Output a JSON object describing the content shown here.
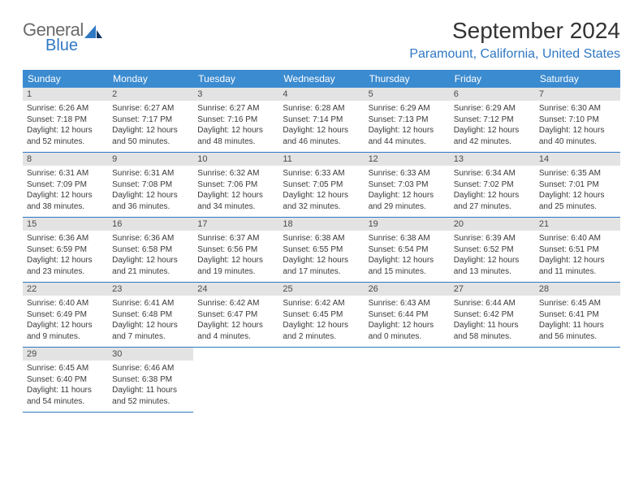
{
  "logo": {
    "word1": "General",
    "word2": "Blue"
  },
  "title": "September 2024",
  "location": "Paramount, California, United States",
  "day_names": [
    "Sunday",
    "Monday",
    "Tuesday",
    "Wednesday",
    "Thursday",
    "Friday",
    "Saturday"
  ],
  "colors": {
    "header_bg": "#3b8bd0",
    "accent": "#2f78c4",
    "daynum_bg": "#e3e3e3",
    "text": "#3a3a3a",
    "logo_gray": "#6b6b6b"
  },
  "days": [
    {
      "n": "1",
      "sr": "6:26 AM",
      "ss": "7:18 PM",
      "dl": "12 hours and 52 minutes."
    },
    {
      "n": "2",
      "sr": "6:27 AM",
      "ss": "7:17 PM",
      "dl": "12 hours and 50 minutes."
    },
    {
      "n": "3",
      "sr": "6:27 AM",
      "ss": "7:16 PM",
      "dl": "12 hours and 48 minutes."
    },
    {
      "n": "4",
      "sr": "6:28 AM",
      "ss": "7:14 PM",
      "dl": "12 hours and 46 minutes."
    },
    {
      "n": "5",
      "sr": "6:29 AM",
      "ss": "7:13 PM",
      "dl": "12 hours and 44 minutes."
    },
    {
      "n": "6",
      "sr": "6:29 AM",
      "ss": "7:12 PM",
      "dl": "12 hours and 42 minutes."
    },
    {
      "n": "7",
      "sr": "6:30 AM",
      "ss": "7:10 PM",
      "dl": "12 hours and 40 minutes."
    },
    {
      "n": "8",
      "sr": "6:31 AM",
      "ss": "7:09 PM",
      "dl": "12 hours and 38 minutes."
    },
    {
      "n": "9",
      "sr": "6:31 AM",
      "ss": "7:08 PM",
      "dl": "12 hours and 36 minutes."
    },
    {
      "n": "10",
      "sr": "6:32 AM",
      "ss": "7:06 PM",
      "dl": "12 hours and 34 minutes."
    },
    {
      "n": "11",
      "sr": "6:33 AM",
      "ss": "7:05 PM",
      "dl": "12 hours and 32 minutes."
    },
    {
      "n": "12",
      "sr": "6:33 AM",
      "ss": "7:03 PM",
      "dl": "12 hours and 29 minutes."
    },
    {
      "n": "13",
      "sr": "6:34 AM",
      "ss": "7:02 PM",
      "dl": "12 hours and 27 minutes."
    },
    {
      "n": "14",
      "sr": "6:35 AM",
      "ss": "7:01 PM",
      "dl": "12 hours and 25 minutes."
    },
    {
      "n": "15",
      "sr": "6:36 AM",
      "ss": "6:59 PM",
      "dl": "12 hours and 23 minutes."
    },
    {
      "n": "16",
      "sr": "6:36 AM",
      "ss": "6:58 PM",
      "dl": "12 hours and 21 minutes."
    },
    {
      "n": "17",
      "sr": "6:37 AM",
      "ss": "6:56 PM",
      "dl": "12 hours and 19 minutes."
    },
    {
      "n": "18",
      "sr": "6:38 AM",
      "ss": "6:55 PM",
      "dl": "12 hours and 17 minutes."
    },
    {
      "n": "19",
      "sr": "6:38 AM",
      "ss": "6:54 PM",
      "dl": "12 hours and 15 minutes."
    },
    {
      "n": "20",
      "sr": "6:39 AM",
      "ss": "6:52 PM",
      "dl": "12 hours and 13 minutes."
    },
    {
      "n": "21",
      "sr": "6:40 AM",
      "ss": "6:51 PM",
      "dl": "12 hours and 11 minutes."
    },
    {
      "n": "22",
      "sr": "6:40 AM",
      "ss": "6:49 PM",
      "dl": "12 hours and 9 minutes."
    },
    {
      "n": "23",
      "sr": "6:41 AM",
      "ss": "6:48 PM",
      "dl": "12 hours and 7 minutes."
    },
    {
      "n": "24",
      "sr": "6:42 AM",
      "ss": "6:47 PM",
      "dl": "12 hours and 4 minutes."
    },
    {
      "n": "25",
      "sr": "6:42 AM",
      "ss": "6:45 PM",
      "dl": "12 hours and 2 minutes."
    },
    {
      "n": "26",
      "sr": "6:43 AM",
      "ss": "6:44 PM",
      "dl": "12 hours and 0 minutes."
    },
    {
      "n": "27",
      "sr": "6:44 AM",
      "ss": "6:42 PM",
      "dl": "11 hours and 58 minutes."
    },
    {
      "n": "28",
      "sr": "6:45 AM",
      "ss": "6:41 PM",
      "dl": "11 hours and 56 minutes."
    },
    {
      "n": "29",
      "sr": "6:45 AM",
      "ss": "6:40 PM",
      "dl": "11 hours and 54 minutes."
    },
    {
      "n": "30",
      "sr": "6:46 AM",
      "ss": "6:38 PM",
      "dl": "11 hours and 52 minutes."
    }
  ],
  "labels": {
    "sunrise": "Sunrise:",
    "sunset": "Sunset:",
    "daylight": "Daylight:"
  }
}
